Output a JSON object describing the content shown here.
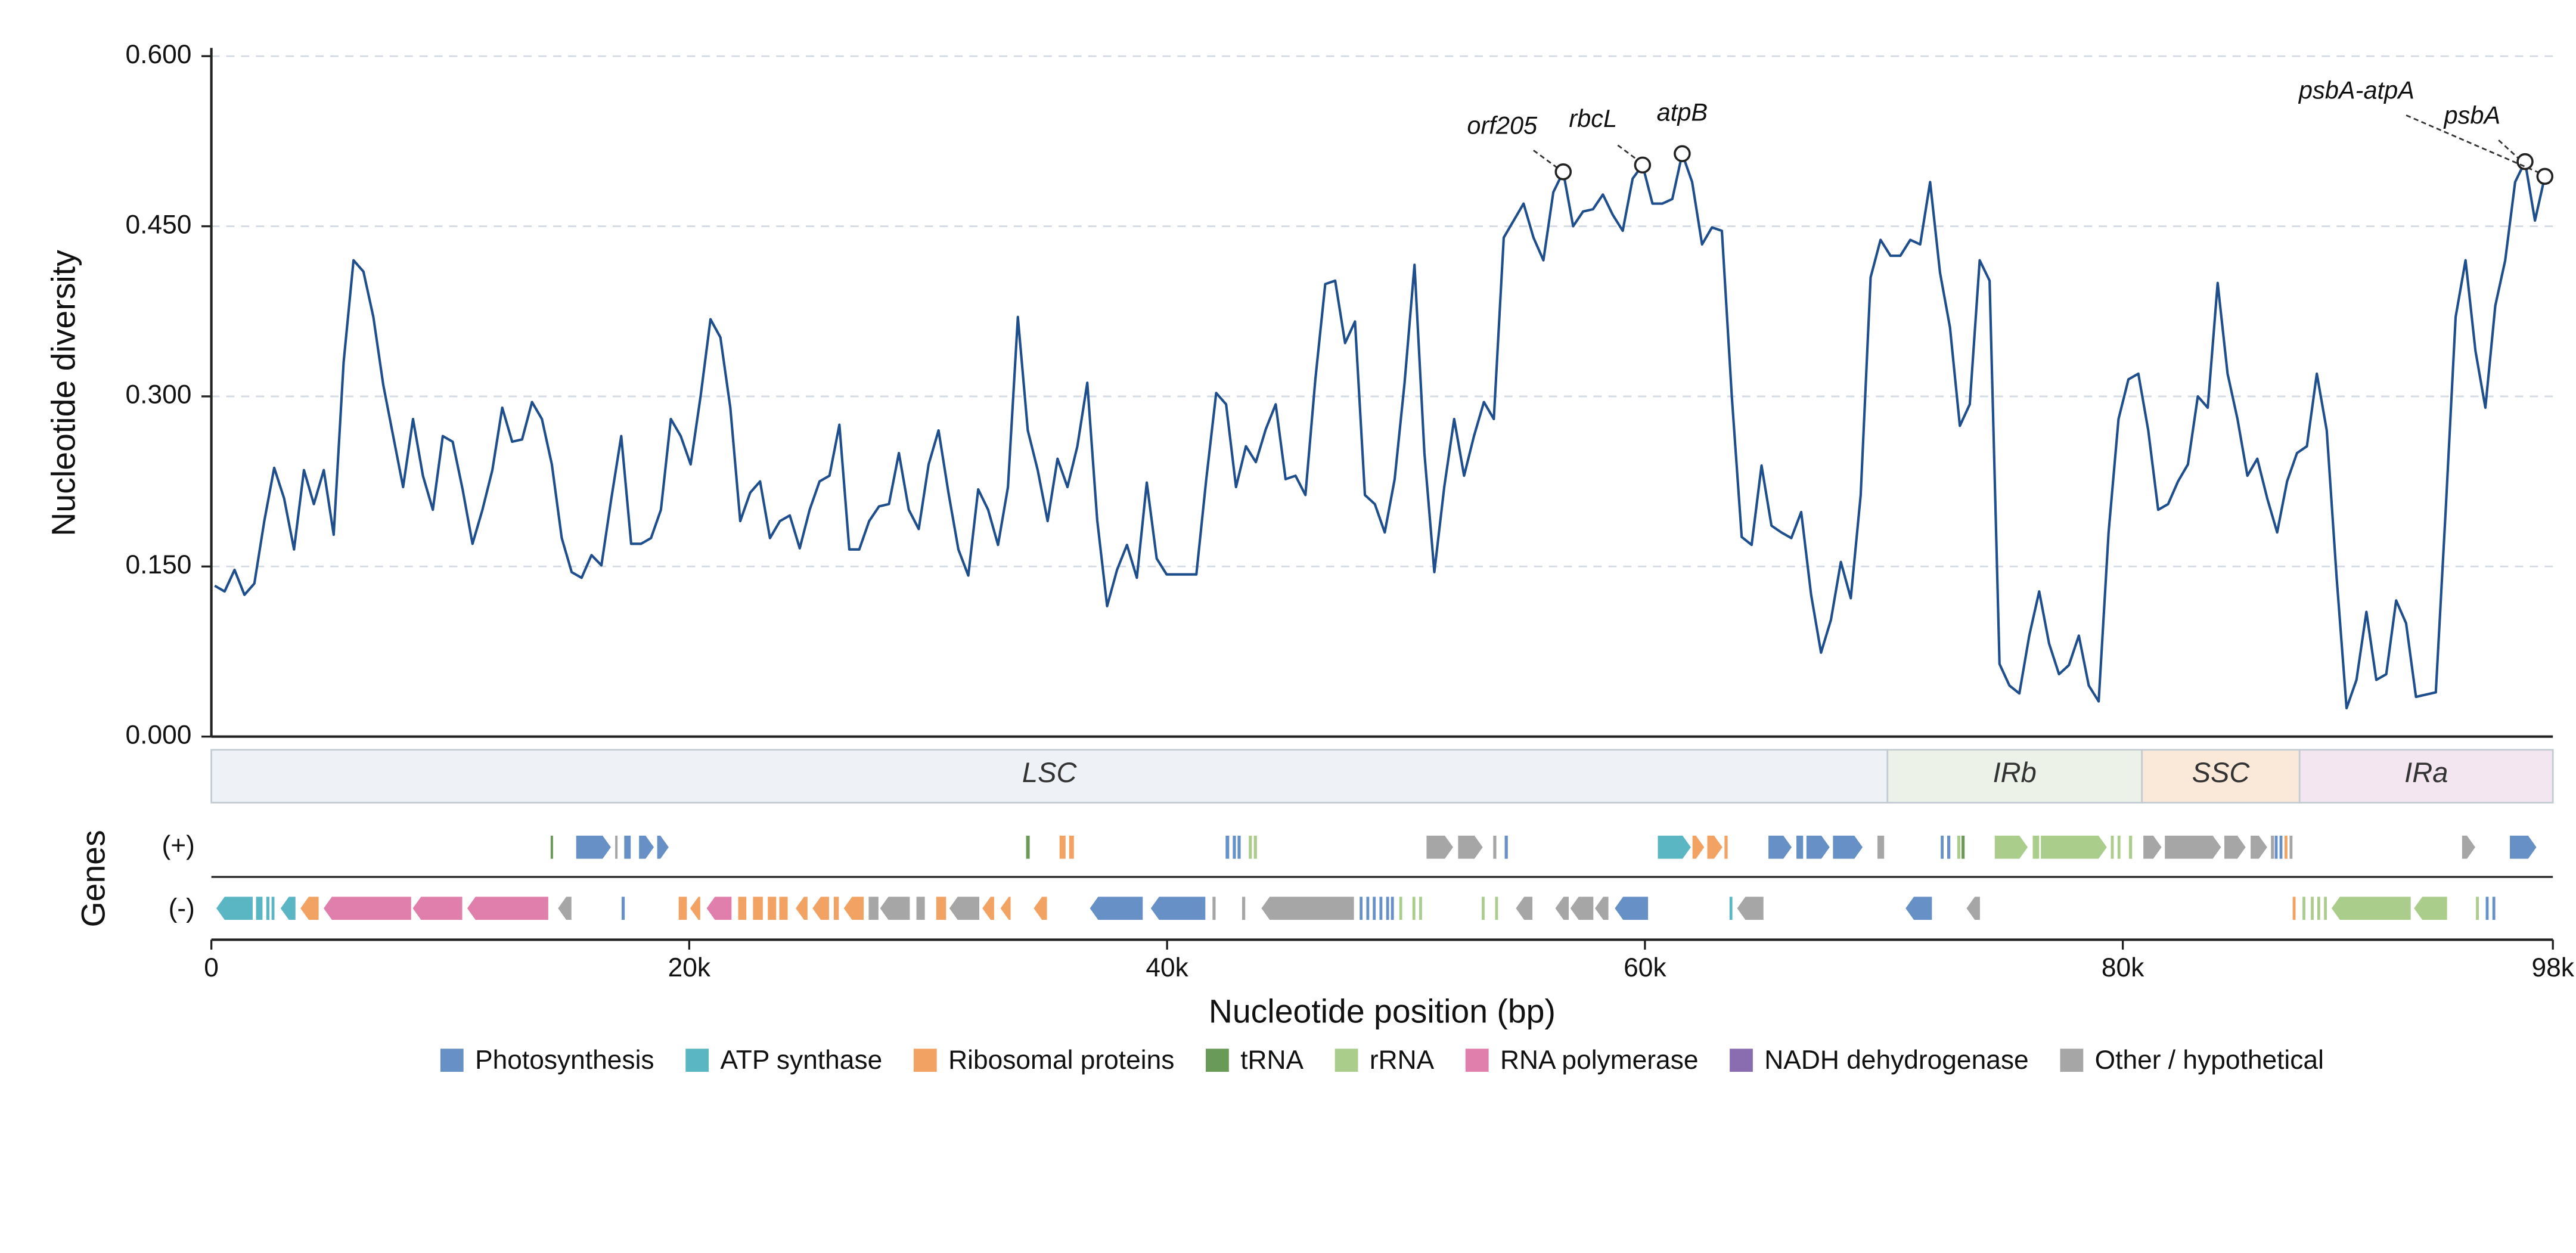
{
  "chart_data": {
    "type": "line",
    "ylabel": "Nucleotide diversity",
    "xlabel": "Nucleotide position (bp)",
    "color": "#1f4e8c",
    "grid": true,
    "xlim": [
      0,
      98000
    ],
    "ylim": [
      0,
      0.6
    ],
    "xticks": [
      0,
      {
        "value": 20000,
        "label": "20k"
      },
      {
        "value": 40000,
        "label": "40k"
      },
      {
        "value": 60000,
        "label": "60k"
      },
      {
        "value": 80000,
        "label": "80k"
      },
      {
        "value": 98000,
        "label": "98k"
      }
    ],
    "yticks": [
      {
        "value": 0,
        "label": "0.000"
      },
      {
        "value": 0.15,
        "label": "0.150"
      },
      {
        "value": 0.3,
        "label": "0.300"
      },
      {
        "value": 0.45,
        "label": "0.450"
      },
      {
        "value": 0.6,
        "label": "0.600"
      }
    ],
    "x": [
      140,
      555,
      970,
      1385,
      1800,
      2215,
      2630,
      3045,
      3460,
      3875,
      4290,
      4705,
      5120,
      5535,
      5950,
      6365,
      6780,
      7195,
      7610,
      8025,
      8440,
      8855,
      9270,
      9685,
      10100,
      10515,
      10930,
      11345,
      11760,
      12175,
      12590,
      13005,
      13420,
      13835,
      14250,
      14665,
      15080,
      15495,
      15910,
      16325,
      16740,
      17155,
      17570,
      17985,
      18400,
      18815,
      19230,
      19645,
      20060,
      20475,
      20890,
      21305,
      21720,
      22135,
      22550,
      22965,
      23380,
      23795,
      24210,
      24625,
      25040,
      25455,
      25870,
      26285,
      26700,
      27115,
      27530,
      27945,
      28360,
      28775,
      29190,
      29605,
      30020,
      30435,
      30850,
      31265,
      31680,
      32095,
      32510,
      32925,
      33340,
      33755,
      34170,
      34585,
      35000,
      35415,
      35830,
      36245,
      36660,
      37075,
      37490,
      37905,
      38320,
      38735,
      39150,
      39565,
      39980,
      40395,
      40810,
      41225,
      41640,
      42055,
      42470,
      42885,
      43300,
      43715,
      44130,
      44545,
      44960,
      45375,
      45790,
      46205,
      46620,
      47035,
      47450,
      47865,
      48280,
      48695,
      49110,
      49525,
      49940,
      50355,
      50770,
      51185,
      51600,
      52015,
      52430,
      52845,
      53260,
      53675,
      54090,
      54505,
      54920,
      55335,
      55750,
      56165,
      56580,
      56995,
      57410,
      57825,
      58240,
      58655,
      59070,
      59485,
      59900,
      60315,
      60730,
      61145,
      61560,
      61975,
      62390,
      62805,
      63220,
      63635,
      64050,
      64465,
      64880,
      65295,
      65710,
      66125,
      66540,
      66955,
      67370,
      67785,
      68200,
      68615,
      69030,
      69445,
      69860,
      70275,
      70690,
      71105,
      71520,
      71935,
      72350,
      72765,
      73180,
      73595,
      74010,
      74425,
      74840,
      75255,
      75670,
      76085,
      76500,
      76915,
      77330,
      77745,
      78160,
      78575,
      78990,
      79405,
      79820,
      80235,
      80650,
      81065,
      81480,
      81895,
      82310,
      82725,
      83140,
      83555,
      83970,
      84385,
      84800,
      85215,
      85630,
      86045,
      86460,
      86875,
      87290,
      87705,
      88120,
      88535,
      88950,
      89365,
      89780,
      90195,
      90610,
      91025,
      91440,
      91855,
      92270,
      92685,
      93100,
      93515,
      93930,
      94345,
      94760,
      95175,
      95590,
      96005,
      96420,
      96835,
      97250,
      97665
    ],
    "values": [
      0.133,
      0.128,
      0.147,
      0.125,
      0.135,
      0.19,
      0.237,
      0.21,
      0.165,
      0.235,
      0.205,
      0.235,
      0.178,
      0.33,
      0.42,
      0.41,
      0.37,
      0.31,
      0.265,
      0.22,
      0.28,
      0.23,
      0.2,
      0.265,
      0.26,
      0.218,
      0.17,
      0.2,
      0.235,
      0.29,
      0.26,
      0.262,
      0.295,
      0.28,
      0.24,
      0.175,
      0.145,
      0.14,
      0.16,
      0.151,
      0.21,
      0.265,
      0.17,
      0.17,
      0.175,
      0.2,
      0.28,
      0.265,
      0.24,
      0.3,
      0.368,
      0.352,
      0.29,
      0.19,
      0.215,
      0.225,
      0.175,
      0.19,
      0.195,
      0.166,
      0.2,
      0.225,
      0.23,
      0.275,
      0.165,
      0.165,
      0.19,
      0.203,
      0.205,
      0.25,
      0.2,
      0.183,
      0.24,
      0.27,
      0.215,
      0.165,
      0.142,
      0.218,
      0.2,
      0.169,
      0.22,
      0.37,
      0.27,
      0.235,
      0.19,
      0.245,
      0.22,
      0.256,
      0.312,
      0.191,
      0.115,
      0.147,
      0.169,
      0.14,
      0.224,
      0.157,
      0.143,
      0.143,
      0.143,
      0.143,
      0.227,
      0.303,
      0.293,
      0.22,
      0.256,
      0.242,
      0.271,
      0.293,
      0.227,
      0.23,
      0.213,
      0.315,
      0.399,
      0.402,
      0.347,
      0.366,
      0.213,
      0.205,
      0.18,
      0.227,
      0.312,
      0.416,
      0.25,
      0.145,
      0.22,
      0.28,
      0.23,
      0.265,
      0.295,
      0.28,
      0.44,
      0.455,
      0.47,
      0.44,
      0.42,
      0.48,
      0.498,
      0.45,
      0.463,
      0.465,
      0.478,
      0.46,
      0.446,
      0.492,
      0.504,
      0.47,
      0.47,
      0.474,
      0.514,
      0.489,
      0.434,
      0.449,
      0.446,
      0.3,
      0.176,
      0.169,
      0.239,
      0.186,
      0.18,
      0.175,
      0.198,
      0.125,
      0.074,
      0.103,
      0.154,
      0.122,
      0.213,
      0.405,
      0.438,
      0.424,
      0.424,
      0.438,
      0.434,
      0.489,
      0.409,
      0.361,
      0.274,
      0.293,
      0.42,
      0.402,
      0.064,
      0.045,
      0.038,
      0.089,
      0.128,
      0.082,
      0.055,
      0.063,
      0.089,
      0.045,
      0.031,
      0.18,
      0.28,
      0.315,
      0.32,
      0.27,
      0.2,
      0.205,
      0.225,
      0.24,
      0.3,
      0.29,
      0.4,
      0.32,
      0.28,
      0.23,
      0.245,
      0.21,
      0.18,
      0.225,
      0.25,
      0.256,
      0.32,
      0.27,
      0.14,
      0.025,
      0.05,
      0.11,
      0.05,
      0.055,
      0.12,
      0.1,
      0.035,
      0.037,
      0.039,
      0.2,
      0.37,
      0.42,
      0.34,
      0.29,
      0.38,
      0.42,
      0.489,
      0.507,
      0.455,
      0.494
    ],
    "annotations": [
      {
        "text": "orf205",
        "x": 56580,
        "y": 0.498
      },
      {
        "text": "rbcL",
        "x": 59900,
        "y": 0.504
      },
      {
        "text": "atpB",
        "x": 61560,
        "y": 0.514
      },
      {
        "text": "psbA",
        "x": 96835,
        "y": 0.507
      },
      {
        "text": "psbA-atpA",
        "x": 97665,
        "y": 0.494
      }
    ],
    "regions": [
      {
        "label": "LSC",
        "start": 0,
        "end": 70150,
        "color": "#eef2f6"
      },
      {
        "label": "IRb",
        "start": 70150,
        "end": 80800,
        "color": "#ecf2e8"
      },
      {
        "label": "SSC",
        "start": 80800,
        "end": 87400,
        "color": "#fae8d8"
      },
      {
        "label": "IRa",
        "start": 87400,
        "end": 98000,
        "color": "#f3e6f1"
      }
    ],
    "legend": [
      {
        "name": "Photosynthesis",
        "color": "#6690c6"
      },
      {
        "name": "ATP synthase",
        "color": "#5bb6c4"
      },
      {
        "name": "Ribosomal proteins",
        "color": "#f2a263"
      },
      {
        "name": "tRNA",
        "color": "#6a9a57"
      },
      {
        "name": "rRNA",
        "color": "#abcd8c"
      },
      {
        "name": "RNA polymerase",
        "color": "#e07fab"
      },
      {
        "name": "NADH dehydrogenase",
        "color": "#8a6db1"
      },
      {
        "name": "Other / hypothetical",
        "color": "#a6a6a6"
      }
    ],
    "gene_track": {
      "title": "Genes",
      "plus_label": "(+)",
      "minus_label": "(-)",
      "plus": [
        [
          14200,
          14300,
          3
        ],
        [
          15270,
          16720,
          0
        ],
        [
          16900,
          17000,
          7
        ],
        [
          17280,
          17550,
          0
        ],
        [
          17900,
          18520,
          0
        ],
        [
          18660,
          19140,
          0
        ],
        [
          34100,
          34250,
          3
        ],
        [
          35500,
          35750,
          2
        ],
        [
          35900,
          36100,
          2
        ],
        [
          42450,
          42600,
          0
        ],
        [
          42750,
          42880,
          0
        ],
        [
          42950,
          43080,
          0
        ],
        [
          43420,
          43550,
          4
        ],
        [
          43630,
          43760,
          4
        ],
        [
          50860,
          51970,
          7
        ],
        [
          52180,
          53210,
          7
        ],
        [
          53650,
          53780,
          7
        ],
        [
          54130,
          54260,
          0
        ],
        [
          60540,
          61920,
          1
        ],
        [
          61990,
          62480,
          2
        ],
        [
          62610,
          63240,
          2
        ],
        [
          63330,
          63460,
          2
        ],
        [
          65170,
          66140,
          0
        ],
        [
          66340,
          66620,
          0
        ],
        [
          66760,
          67730,
          0
        ],
        [
          67870,
          69110,
          0
        ],
        [
          69730,
          70010,
          7
        ],
        [
          72380,
          72500,
          0
        ],
        [
          72650,
          72780,
          0
        ],
        [
          73070,
          73200,
          4
        ],
        [
          73250,
          73380,
          3
        ],
        [
          74640,
          76020,
          4
        ],
        [
          76230,
          76500,
          4
        ],
        [
          76570,
          79330,
          4
        ],
        [
          79500,
          79620,
          4
        ],
        [
          79780,
          79900,
          4
        ],
        [
          80260,
          80390,
          4
        ],
        [
          80860,
          81620,
          7
        ],
        [
          81760,
          84110,
          7
        ],
        [
          84250,
          85140,
          7
        ],
        [
          85350,
          86040,
          7
        ],
        [
          86200,
          86330,
          7
        ],
        [
          86360,
          86480,
          0
        ],
        [
          86560,
          86680,
          0
        ],
        [
          86770,
          86890,
          2
        ],
        [
          86980,
          87100,
          7
        ],
        [
          94200,
          94750,
          7
        ],
        [
          96200,
          97310,
          0
        ]
      ],
      "minus": [
        [
          210,
          1730,
          1
        ],
        [
          1870,
          2140,
          1
        ],
        [
          2300,
          2430,
          1
        ],
        [
          2520,
          2640,
          1
        ],
        [
          2900,
          3520,
          1
        ],
        [
          3730,
          4490,
          2
        ],
        [
          4700,
          8360,
          5
        ],
        [
          8430,
          10500,
          5
        ],
        [
          10710,
          14100,
          5
        ],
        [
          14510,
          15070,
          7
        ],
        [
          17170,
          17300,
          0
        ],
        [
          19560,
          19900,
          2
        ],
        [
          20040,
          20460,
          2
        ],
        [
          20730,
          21770,
          5
        ],
        [
          22050,
          22390,
          2
        ],
        [
          22670,
          23080,
          2
        ],
        [
          23290,
          23640,
          2
        ],
        [
          23770,
          24120,
          2
        ],
        [
          24460,
          24950,
          2
        ],
        [
          25160,
          25850,
          2
        ],
        [
          26050,
          26260,
          2
        ],
        [
          26470,
          27300,
          2
        ],
        [
          27510,
          27920,
          7
        ],
        [
          27990,
          29230,
          7
        ],
        [
          29510,
          29860,
          7
        ],
        [
          30340,
          30750,
          2
        ],
        [
          30890,
          32140,
          7
        ],
        [
          32270,
          32760,
          2
        ],
        [
          33030,
          33450,
          2
        ],
        [
          34420,
          34970,
          2
        ],
        [
          36770,
          38980,
          0
        ],
        [
          39320,
          41600,
          0
        ],
        [
          41900,
          42030,
          7
        ],
        [
          43140,
          43270,
          7
        ],
        [
          43950,
          47820,
          7
        ],
        [
          48060,
          48180,
          0
        ],
        [
          48340,
          48460,
          0
        ],
        [
          48610,
          48730,
          0
        ],
        [
          48890,
          49010,
          0
        ],
        [
          49170,
          49290,
          0
        ],
        [
          49370,
          49490,
          0
        ],
        [
          49720,
          49840,
          4
        ],
        [
          50270,
          50390,
          4
        ],
        [
          50550,
          50670,
          4
        ],
        [
          53170,
          53290,
          4
        ],
        [
          53730,
          53850,
          4
        ],
        [
          54600,
          55290,
          7
        ],
        [
          56250,
          56810,
          7
        ],
        [
          56880,
          57840,
          7
        ],
        [
          57910,
          58470,
          7
        ],
        [
          58740,
          60130,
          0
        ],
        [
          63540,
          63660,
          1
        ],
        [
          63860,
          64960,
          7
        ],
        [
          70910,
          72010,
          0
        ],
        [
          73460,
          74020,
          7
        ],
        [
          87110,
          87230,
          2
        ],
        [
          87520,
          87640,
          4
        ],
        [
          87870,
          87990,
          4
        ],
        [
          88140,
          88260,
          4
        ],
        [
          88420,
          88540,
          4
        ],
        [
          88740,
          92050,
          4
        ],
        [
          92190,
          93570,
          4
        ],
        [
          94780,
          94900,
          4
        ],
        [
          95190,
          95310,
          0
        ],
        [
          95470,
          95590,
          0
        ]
      ]
    }
  }
}
